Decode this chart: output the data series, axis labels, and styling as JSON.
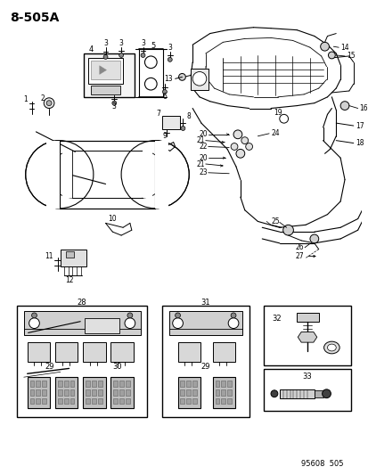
{
  "title": "8-505A",
  "footer": "95608  505",
  "bg": "#ffffff",
  "fig_w": 4.14,
  "fig_h": 5.33,
  "dpi": 100
}
